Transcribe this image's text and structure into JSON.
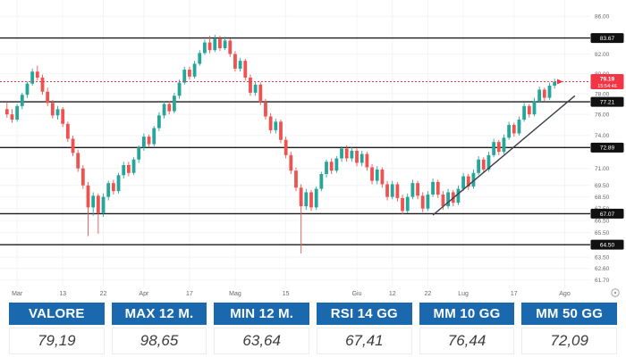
{
  "colors": {
    "up": "#26a69a",
    "down": "#ef5350",
    "level_line": "#1c1c1c",
    "trend_line": "#3a3f4a",
    "price_line": "#f23645",
    "grid": "#f2f4f8",
    "badge_dark_bg": "#111111",
    "badge_dark_text": "#ffffff",
    "price_badge_bg": "#f23645",
    "price_badge_text": "#ffffff",
    "axis_text": "#666666",
    "table_header_bg": "#1a69ae",
    "table_header_text": "#ffffff",
    "table_value_text": "#3d3d3d"
  },
  "chart_data": {
    "type": "candlestick",
    "scale": "log",
    "ylim": [
      61.0,
      86.5
    ],
    "grid": true,
    "y_ticks": [
      "86.00",
      "82.00",
      "80.00",
      "78.00",
      "76.00",
      "74.00",
      "71.00",
      "69.50",
      "68.50",
      "67.50",
      "66.50",
      "65.50",
      "63.50",
      "62.60",
      "61.70"
    ],
    "x_ticks": [
      {
        "label": "Mar",
        "day": 2
      },
      {
        "label": "13",
        "day": 11
      },
      {
        "label": "22",
        "day": 19
      },
      {
        "label": "Apr",
        "day": 27
      },
      {
        "label": "17",
        "day": 36
      },
      {
        "label": "Mag",
        "day": 45
      },
      {
        "label": "15",
        "day": 55
      },
      {
        "label": "Giu",
        "day": 69
      },
      {
        "label": "12",
        "day": 76
      },
      {
        "label": "22",
        "day": 83
      },
      {
        "label": "Lug",
        "day": 90
      },
      {
        "label": "17",
        "day": 100
      },
      {
        "label": "Ago",
        "day": 110
      }
    ],
    "level_lines": [
      {
        "price": 83.67,
        "label": "83.67"
      },
      {
        "price": 77.21,
        "label": "77.21"
      },
      {
        "price": 72.89,
        "label": "72.89"
      },
      {
        "price": 67.07,
        "label": "67.07"
      },
      {
        "price": 64.5,
        "label": "64.50"
      }
    ],
    "current_price": {
      "value": 79.19,
      "label": "79.19",
      "time": "15:54:46"
    },
    "trend_line": {
      "from_day": 84,
      "from_price": 66.95,
      "to_day": 112,
      "to_price": 77.8
    },
    "candles": [
      [
        76.5,
        77.2,
        75.7,
        76.0
      ],
      [
        76.0,
        76.5,
        75.2,
        75.5
      ],
      [
        75.5,
        77.0,
        75.3,
        76.8
      ],
      [
        76.8,
        78.1,
        76.5,
        77.9
      ],
      [
        77.9,
        79.2,
        77.6,
        79.0
      ],
      [
        79.0,
        80.5,
        78.8,
        80.2
      ],
      [
        80.2,
        80.8,
        79.3,
        79.6
      ],
      [
        79.6,
        79.9,
        77.9,
        78.2
      ],
      [
        78.2,
        78.6,
        76.8,
        77.1
      ],
      [
        77.1,
        77.4,
        75.6,
        75.9
      ],
      [
        75.9,
        76.8,
        75.5,
        76.5
      ],
      [
        76.5,
        76.7,
        74.8,
        75.1
      ],
      [
        75.1,
        75.3,
        73.4,
        73.7
      ],
      [
        73.7,
        74.0,
        72.1,
        72.4
      ],
      [
        72.4,
        72.7,
        70.7,
        71.0
      ],
      [
        71.0,
        71.3,
        69.2,
        69.5
      ],
      [
        69.5,
        69.8,
        65.2,
        67.6
      ],
      [
        67.6,
        68.9,
        66.9,
        68.6
      ],
      [
        68.6,
        68.8,
        65.4,
        67.1
      ],
      [
        67.1,
        68.8,
        66.8,
        68.5
      ],
      [
        68.5,
        69.9,
        68.2,
        69.7
      ],
      [
        69.7,
        70.0,
        68.7,
        69.0
      ],
      [
        69.0,
        70.6,
        68.8,
        70.4
      ],
      [
        70.4,
        71.6,
        70.1,
        71.3
      ],
      [
        71.3,
        71.6,
        70.3,
        70.6
      ],
      [
        70.6,
        72.0,
        70.4,
        71.8
      ],
      [
        71.8,
        73.1,
        71.5,
        72.9
      ],
      [
        72.9,
        74.2,
        72.6,
        73.9
      ],
      [
        73.9,
        74.1,
        72.9,
        73.2
      ],
      [
        73.2,
        74.9,
        73.0,
        74.7
      ],
      [
        74.7,
        76.2,
        74.4,
        75.9
      ],
      [
        75.9,
        77.3,
        75.6,
        77.0
      ],
      [
        77.0,
        77.3,
        76.0,
        76.3
      ],
      [
        76.3,
        78.1,
        76.1,
        77.8
      ],
      [
        77.8,
        79.4,
        77.5,
        79.1
      ],
      [
        79.1,
        80.7,
        78.9,
        80.4
      ],
      [
        80.4,
        80.7,
        79.4,
        79.7
      ],
      [
        79.7,
        81.3,
        79.5,
        81.0
      ],
      [
        81.0,
        82.4,
        80.8,
        82.1
      ],
      [
        82.1,
        83.5,
        81.9,
        83.2
      ],
      [
        83.2,
        83.9,
        82.1,
        82.4
      ],
      [
        82.4,
        84.0,
        82.2,
        83.6
      ],
      [
        83.6,
        83.9,
        82.3,
        82.6
      ],
      [
        82.6,
        83.8,
        82.4,
        83.4
      ],
      [
        83.4,
        83.6,
        81.7,
        82.0
      ],
      [
        82.0,
        82.3,
        80.2,
        80.5
      ],
      [
        80.5,
        81.6,
        80.2,
        81.3
      ],
      [
        81.3,
        81.5,
        79.3,
        79.6
      ],
      [
        79.6,
        79.9,
        77.8,
        78.1
      ],
      [
        78.1,
        79.2,
        77.8,
        78.9
      ],
      [
        78.9,
        79.1,
        76.9,
        77.2
      ],
      [
        77.2,
        77.5,
        75.5,
        75.8
      ],
      [
        75.8,
        76.1,
        74.2,
        74.5
      ],
      [
        74.5,
        75.6,
        74.2,
        75.3
      ],
      [
        75.3,
        75.5,
        73.3,
        73.6
      ],
      [
        73.6,
        73.9,
        71.9,
        72.2
      ],
      [
        72.2,
        72.5,
        70.5,
        70.8
      ],
      [
        70.8,
        71.1,
        69.0,
        69.3
      ],
      [
        69.3,
        69.6,
        63.8,
        67.7
      ],
      [
        67.7,
        69.2,
        67.4,
        68.9
      ],
      [
        68.9,
        69.1,
        67.3,
        67.6
      ],
      [
        67.6,
        69.4,
        67.4,
        69.2
      ],
      [
        69.2,
        70.7,
        69.0,
        70.5
      ],
      [
        70.5,
        71.8,
        70.2,
        71.6
      ],
      [
        71.6,
        71.9,
        70.5,
        70.8
      ],
      [
        70.8,
        72.1,
        70.6,
        71.9
      ],
      [
        71.9,
        73.0,
        71.6,
        72.8
      ],
      [
        72.8,
        73.1,
        71.6,
        71.9
      ],
      [
        71.9,
        72.9,
        71.6,
        72.6
      ],
      [
        72.6,
        72.8,
        71.2,
        71.5
      ],
      [
        71.5,
        72.6,
        71.2,
        72.3
      ],
      [
        72.3,
        72.5,
        70.8,
        71.1
      ],
      [
        71.1,
        71.4,
        69.6,
        69.9
      ],
      [
        69.9,
        71.2,
        69.6,
        70.9
      ],
      [
        70.9,
        71.1,
        69.3,
        69.6
      ],
      [
        69.6,
        69.9,
        68.2,
        68.5
      ],
      [
        68.5,
        69.9,
        68.3,
        69.6
      ],
      [
        69.6,
        69.8,
        68.1,
        68.4
      ],
      [
        68.4,
        68.7,
        67.0,
        67.3
      ],
      [
        67.3,
        68.8,
        67.1,
        68.5
      ],
      [
        68.5,
        70.0,
        68.3,
        69.7
      ],
      [
        69.7,
        69.9,
        68.3,
        68.6
      ],
      [
        68.6,
        68.9,
        67.2,
        67.5
      ],
      [
        67.5,
        69.0,
        67.3,
        68.7
      ],
      [
        68.7,
        70.1,
        68.5,
        69.8
      ],
      [
        69.8,
        70.0,
        68.4,
        68.7
      ],
      [
        68.7,
        69.0,
        67.4,
        67.7
      ],
      [
        67.7,
        69.2,
        67.5,
        68.9
      ],
      [
        68.9,
        69.1,
        67.7,
        68.0
      ],
      [
        68.0,
        69.5,
        67.8,
        69.2
      ],
      [
        69.2,
        70.6,
        69.0,
        70.3
      ],
      [
        70.3,
        70.5,
        69.1,
        69.4
      ],
      [
        69.4,
        70.9,
        69.2,
        70.6
      ],
      [
        70.6,
        72.1,
        70.4,
        71.8
      ],
      [
        71.8,
        72.0,
        70.6,
        70.9
      ],
      [
        70.9,
        72.5,
        70.7,
        72.2
      ],
      [
        72.2,
        73.7,
        72.0,
        73.4
      ],
      [
        73.4,
        73.6,
        72.2,
        72.5
      ],
      [
        72.5,
        74.1,
        72.3,
        73.8
      ],
      [
        73.8,
        75.3,
        73.6,
        75.0
      ],
      [
        75.0,
        75.2,
        73.9,
        74.2
      ],
      [
        74.2,
        75.8,
        74.0,
        75.5
      ],
      [
        75.5,
        77.1,
        75.3,
        76.8
      ],
      [
        76.8,
        77.0,
        75.7,
        76.0
      ],
      [
        76.0,
        77.6,
        75.8,
        77.3
      ],
      [
        77.3,
        78.7,
        77.1,
        78.4
      ],
      [
        78.4,
        78.6,
        77.3,
        77.6
      ],
      [
        77.6,
        79.1,
        77.4,
        78.8
      ],
      [
        78.8,
        79.5,
        78.5,
        79.19
      ]
    ]
  },
  "table": {
    "columns": [
      {
        "header": "VALORE",
        "value": "79,19"
      },
      {
        "header": "MAX 12 M.",
        "value": "98,65"
      },
      {
        "header": "MIN 12 M.",
        "value": "63,64"
      },
      {
        "header": "RSI 14 GG",
        "value": "67,41"
      },
      {
        "header": "MM 10 GG",
        "value": "76,44"
      },
      {
        "header": "MM 50 GG",
        "value": "72,09"
      }
    ]
  }
}
